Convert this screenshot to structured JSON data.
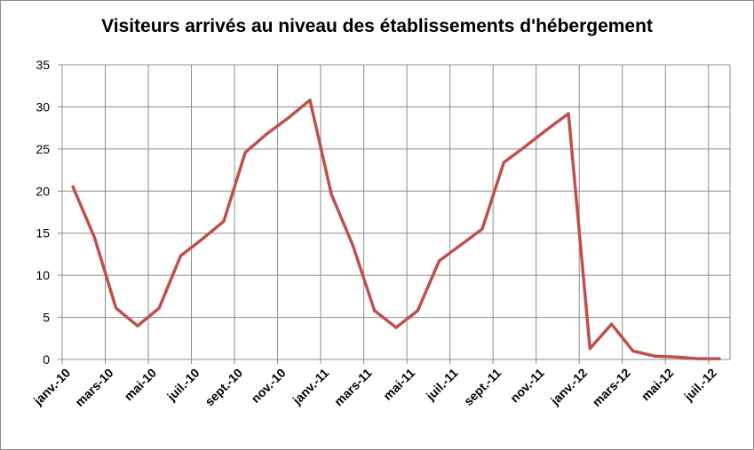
{
  "chart_data": {
    "type": "line",
    "title": "Visiteurs arrivés au niveau des établissements d'hébergement",
    "xlabel": "",
    "ylabel": "",
    "ylim": [
      0,
      35
    ],
    "yticks": [
      0,
      5,
      10,
      15,
      20,
      25,
      30,
      35
    ],
    "grid": true,
    "legend": "none",
    "line_color": "#c0504d",
    "x_tick_labels": [
      "janv.-10",
      "mars-10",
      "mai-10",
      "juil.-10",
      "sept.-10",
      "nov.-10",
      "janv.-11",
      "mars-11",
      "mai-11",
      "juil.-11",
      "sept.-11",
      "nov.-11",
      "janv.-12",
      "mars-12",
      "mai-12",
      "juil.-12"
    ],
    "categories": [
      "janv.-10",
      "févr.-10",
      "mars-10",
      "avr.-10",
      "mai-10",
      "juin-10",
      "juil.-10",
      "août-10",
      "sept.-10",
      "oct.-10",
      "nov.-10",
      "déc.-10",
      "janv.-11",
      "févr.-11",
      "mars-11",
      "avr.-11",
      "mai-11",
      "juin-11",
      "juil.-11",
      "août-11",
      "sept.-11",
      "oct.-11",
      "nov.-11",
      "déc.-11",
      "janv.-12",
      "févr.-12",
      "mars-12",
      "avr.-12",
      "mai-12",
      "juin-12",
      "juil.-12"
    ],
    "values": [
      20.5,
      14.5,
      6.1,
      4.0,
      6.1,
      12.3,
      14.3,
      16.4,
      24.6,
      26.8,
      28.7,
      30.8,
      19.6,
      13.5,
      5.8,
      3.8,
      5.8,
      11.7,
      13.6,
      15.5,
      23.4,
      25.3,
      27.3,
      29.2,
      1.3,
      4.2,
      1.0,
      0.4,
      0.3,
      0.1,
      0.1
    ]
  }
}
